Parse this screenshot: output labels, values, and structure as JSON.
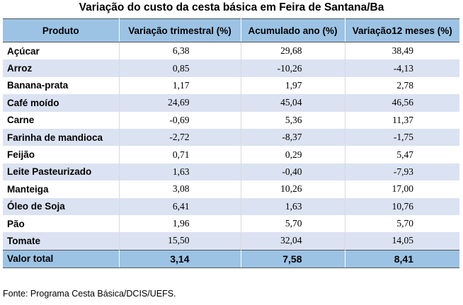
{
  "title": "Variação do custo da cesta básica em Feira de Santana/Ba",
  "headers": [
    "Produto",
    "Variação trimestral (%)",
    "Acumulado ano (%)",
    "Variação12 meses (%)"
  ],
  "rows": [
    {
      "product": "Açúcar",
      "trimestral": "6,38",
      "acumulado": "29,68",
      "doze_meses": "38,49"
    },
    {
      "product": "Arroz",
      "trimestral": "0,85",
      "acumulado": "-10,26",
      "doze_meses": "-4,13"
    },
    {
      "product": "Banana-prata",
      "trimestral": "1,17",
      "acumulado": "1,97",
      "doze_meses": "2,78"
    },
    {
      "product": "Café moído",
      "trimestral": "24,69",
      "acumulado": "45,04",
      "doze_meses": "46,56"
    },
    {
      "product": "Carne",
      "trimestral": "-0,69",
      "acumulado": "5,36",
      "doze_meses": "11,37"
    },
    {
      "product": "Farinha de mandioca",
      "trimestral": "-2,72",
      "acumulado": "-8,37",
      "doze_meses": "-1,75"
    },
    {
      "product": "Feijão",
      "trimestral": "0,71",
      "acumulado": "0,29",
      "doze_meses": "5,47"
    },
    {
      "product": "Leite Pasteurizado",
      "trimestral": "1,63",
      "acumulado": "-0,40",
      "doze_meses": "-7,93"
    },
    {
      "product": "Manteiga",
      "trimestral": "3,08",
      "acumulado": "10,26",
      "doze_meses": "17,00"
    },
    {
      "product": "Óleo de Soja",
      "trimestral": "6,41",
      "acumulado": "1,63",
      "doze_meses": "10,76"
    },
    {
      "product": "Pão",
      "trimestral": "1,96",
      "acumulado": "5,70",
      "doze_meses": "5,70"
    },
    {
      "product": "Tomate",
      "trimestral": "15,50",
      "acumulado": "32,04",
      "doze_meses": "14,05"
    }
  ],
  "total": {
    "label": "Valor total",
    "trimestral": "3,14",
    "acumulado": "7,58",
    "doze_meses": "8,41"
  },
  "source": "Fonte: Programa Cesta Básica/DCIS/UEFS.",
  "colors": {
    "header_bg": "#9cc3e4",
    "stripe_bg": "#dbe2f2"
  }
}
